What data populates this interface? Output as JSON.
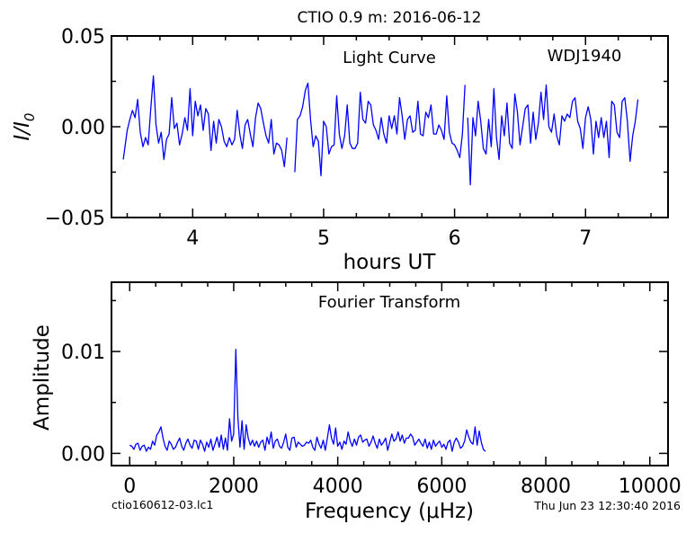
{
  "title": "CTIO 0.9 m:  2016-06-12",
  "footer": {
    "filename": "ctio160612-03.lc1",
    "timestamp": "Thu Jun 23 12:30:40 2016"
  },
  "colors": {
    "series": "#0000ff",
    "axes": "#000000"
  },
  "chart_data": [
    {
      "type": "line",
      "annotations": [
        "Light Curve",
        "WDJ1940"
      ],
      "xlabel": "hours UT",
      "ylabel": "I/I₀",
      "xlim": [
        3.38,
        7.63
      ],
      "ylim": [
        -0.05,
        0.05
      ],
      "xticks": [
        4,
        5,
        6,
        7
      ],
      "xtick_labels": [
        "4",
        "5",
        "6",
        "7"
      ],
      "yticks": [
        -0.05,
        0.0,
        0.05
      ],
      "ytick_labels": [
        "−0.05",
        "0.00",
        "0.05"
      ],
      "segments": [
        {
          "x": [
            3.47,
            3.5,
            3.52,
            3.54,
            3.56,
            3.58,
            3.6,
            3.62,
            3.64,
            3.66,
            3.68,
            3.7,
            3.72,
            3.74,
            3.76,
            3.78,
            3.8,
            3.82,
            3.84,
            3.86,
            3.88,
            3.9,
            3.92,
            3.94,
            3.96,
            3.98,
            4.0,
            4.02,
            4.04,
            4.06,
            4.08,
            4.1,
            4.12,
            4.14,
            4.16,
            4.18,
            4.2,
            4.22,
            4.24,
            4.26,
            4.28,
            4.3,
            4.32,
            4.34,
            4.36,
            4.38,
            4.4,
            4.42,
            4.44,
            4.46,
            4.48,
            4.5,
            4.52,
            4.54,
            4.56,
            4.58,
            4.6,
            4.62,
            4.64,
            4.66,
            4.68,
            4.7,
            4.72
          ],
          "y": [
            -0.018,
            -0.002,
            0.004,
            0.009,
            0.005,
            0.015,
            -0.003,
            -0.011,
            -0.006,
            -0.01,
            0.01,
            0.028,
            0.001,
            -0.009,
            -0.003,
            -0.018,
            -0.007,
            -0.004,
            0.016,
            -0.001,
            0.002,
            -0.01,
            -0.004,
            0.005,
            -0.002,
            0.021,
            -0.005,
            0.014,
            0.006,
            0.012,
            -0.002,
            0.01,
            0.007,
            -0.013,
            0.003,
            -0.009,
            0.004,
            0.0,
            -0.008,
            -0.011,
            -0.006,
            -0.01,
            -0.007,
            0.009,
            -0.004,
            -0.012,
            0.001,
            0.004,
            -0.004,
            -0.011,
            0.005,
            0.013,
            0.01,
            0.002,
            -0.005,
            -0.009,
            0.004,
            -0.015,
            -0.009,
            -0.01,
            -0.013,
            -0.022,
            -0.006
          ]
        },
        {
          "x": [
            4.78,
            4.8,
            4.82,
            4.84,
            4.86,
            4.88,
            4.9,
            4.92,
            4.94,
            4.96,
            4.98,
            5.0,
            5.02,
            5.04,
            5.06,
            5.08,
            5.1,
            5.12,
            5.14,
            5.16,
            5.18,
            5.2,
            5.22,
            5.24,
            5.26,
            5.28,
            5.3,
            5.32,
            5.34,
            5.36,
            5.38,
            5.4,
            5.42,
            5.44,
            5.46,
            5.48,
            5.5,
            5.52,
            5.54,
            5.56,
            5.58,
            5.6,
            5.62,
            5.64,
            5.66,
            5.68,
            5.7,
            5.72,
            5.74,
            5.76,
            5.78,
            5.8,
            5.82,
            5.84,
            5.86,
            5.88,
            5.9,
            5.92,
            5.94,
            5.96,
            5.98,
            6.0,
            6.02,
            6.04,
            6.06,
            6.08
          ],
          "y": [
            -0.025,
            0.004,
            0.006,
            0.011,
            0.02,
            0.024,
            0.004,
            -0.011,
            -0.005,
            -0.008,
            -0.027,
            0.003,
            0.0,
            -0.015,
            -0.011,
            -0.01,
            0.017,
            -0.004,
            -0.012,
            -0.005,
            0.012,
            -0.009,
            -0.012,
            -0.012,
            -0.009,
            0.019,
            0.004,
            0.002,
            0.014,
            0.012,
            0.001,
            -0.002,
            -0.007,
            0.005,
            -0.004,
            -0.009,
            0.006,
            -0.001,
            0.006,
            -0.004,
            0.016,
            0.006,
            -0.007,
            0.004,
            0.006,
            -0.003,
            -0.002,
            0.014,
            -0.004,
            -0.005,
            0.008,
            0.005,
            0.012,
            -0.004,
            -0.004,
            0.001,
            -0.002,
            -0.007,
            0.017,
            -0.003,
            -0.009,
            -0.01,
            -0.013,
            -0.017,
            -0.004,
            0.023
          ]
        },
        {
          "x": [
            6.1,
            6.12,
            6.14,
            6.16,
            6.18,
            6.2,
            6.22,
            6.24,
            6.26,
            6.28,
            6.3,
            6.32,
            6.34,
            6.36,
            6.38,
            6.4,
            6.42,
            6.44,
            6.46,
            6.48,
            6.5,
            6.52,
            6.54,
            6.56,
            6.58,
            6.6,
            6.62,
            6.64,
            6.66,
            6.68,
            6.7,
            6.72,
            6.74,
            6.76,
            6.78,
            6.8,
            6.82,
            6.84,
            6.86,
            6.88,
            6.9,
            6.92,
            6.94,
            6.96,
            6.98,
            7.0,
            7.02,
            7.04,
            7.06,
            7.08,
            7.1,
            7.12,
            7.14,
            7.16,
            7.18,
            7.2,
            7.22,
            7.24,
            7.26,
            7.28,
            7.3,
            7.32,
            7.34,
            7.36,
            7.38,
            7.4
          ],
          "y": [
            0.005,
            -0.032,
            0.005,
            -0.005,
            0.014,
            0.003,
            -0.012,
            -0.015,
            0.004,
            -0.011,
            0.021,
            -0.006,
            -0.018,
            0.006,
            -0.005,
            0.013,
            -0.009,
            -0.012,
            0.018,
            0.008,
            -0.01,
            0.0,
            0.01,
            0.012,
            -0.009,
            0.008,
            -0.007,
            0.002,
            0.019,
            0.004,
            0.023,
            0.0,
            -0.003,
            0.007,
            -0.005,
            -0.01,
            0.006,
            0.003,
            0.007,
            0.005,
            0.014,
            0.016,
            0.003,
            -0.001,
            -0.012,
            0.005,
            0.011,
            0.004,
            -0.015,
            0.003,
            -0.006,
            0.005,
            -0.006,
            0.003,
            -0.017,
            0.014,
            0.012,
            -0.003,
            -0.006,
            0.014,
            0.016,
            0.003,
            -0.019,
            -0.005,
            0.003,
            0.015
          ]
        }
      ]
    },
    {
      "type": "line",
      "annotations": [
        "Fourier Transform"
      ],
      "xlabel": "Frequency (μHz)",
      "ylabel": "Amplitude",
      "xlim": [
        -350,
        10350
      ],
      "ylim": [
        -0.0012,
        0.0168
      ],
      "xticks": [
        0,
        2000,
        4000,
        6000,
        8000,
        10000
      ],
      "xtick_labels": [
        "0",
        "2000",
        "4000",
        "6000",
        "8000",
        "10000"
      ],
      "yticks": [
        0.0,
        0.01
      ],
      "ytick_labels": [
        "0.00",
        "0.01"
      ],
      "segments": [
        {
          "x": [
            0,
            40,
            80,
            120,
            160,
            200,
            240,
            280,
            320,
            360,
            400,
            440,
            480,
            520,
            560,
            600,
            640,
            680,
            720,
            760,
            800,
            840,
            880,
            920,
            960,
            1000,
            1040,
            1080,
            1120,
            1160,
            1200,
            1240,
            1280,
            1320,
            1360,
            1400,
            1440,
            1480,
            1520,
            1560,
            1600,
            1640,
            1680,
            1720,
            1760,
            1800,
            1840,
            1880,
            1920,
            1960,
            2000,
            2040,
            2080,
            2120,
            2160,
            2200,
            2240,
            2280,
            2320,
            2360,
            2400,
            2440,
            2480,
            2520,
            2560,
            2600,
            2640,
            2680,
            2720,
            2760,
            2800,
            2840,
            2880,
            2920,
            2960,
            3000,
            3040,
            3080,
            3120,
            3160,
            3200,
            3240,
            3280,
            3320,
            3360,
            3400,
            3440,
            3480,
            3520,
            3560,
            3600,
            3640,
            3680,
            3720,
            3760,
            3800,
            3840,
            3880,
            3920,
            3960,
            4000,
            4040,
            4080,
            4120,
            4160,
            4200,
            4240,
            4280,
            4320,
            4360,
            4400,
            4440,
            4480,
            4520,
            4560,
            4600,
            4640,
            4680,
            4720,
            4760,
            4800,
            4840,
            4880,
            4920,
            4960,
            5000,
            5040,
            5080,
            5120,
            5160,
            5200,
            5240,
            5280,
            5320,
            5360,
            5400,
            5440,
            5480,
            5520,
            5560,
            5600,
            5640,
            5680,
            5720,
            5760,
            5800,
            5840,
            5880,
            5920,
            5960,
            6000,
            6040,
            6080,
            6120,
            6160,
            6200,
            6240,
            6280,
            6320,
            6360,
            6400,
            6440,
            6480,
            6520,
            6560,
            6600,
            6640,
            6680,
            6720,
            6760,
            6800,
            6840
          ],
          "y": [
            0.0008,
            0.0007,
            0.0004,
            0.0009,
            0.001,
            0.0003,
            0.0007,
            0.0008,
            0.0002,
            0.0006,
            0.0004,
            0.0012,
            0.0008,
            0.0018,
            0.0021,
            0.0026,
            0.0015,
            0.0007,
            0.0003,
            0.0012,
            0.0009,
            0.0004,
            0.0006,
            0.0011,
            0.0015,
            0.0007,
            0.0003,
            0.001,
            0.0014,
            0.0008,
            0.0005,
            0.0013,
            0.0012,
            0.0004,
            0.0013,
            0.0009,
            0.0002,
            0.0011,
            0.0006,
            0.0014,
            0.0003,
            0.0009,
            0.0016,
            0.0006,
            0.0018,
            0.0004,
            0.0015,
            0.0003,
            0.0034,
            0.0012,
            0.0019,
            0.0102,
            0.0035,
            0.0006,
            0.0032,
            0.0004,
            0.0028,
            0.0015,
            0.0008,
            0.0013,
            0.0007,
            0.0012,
            0.0006,
            0.0011,
            0.0013,
            0.0003,
            0.0016,
            0.0009,
            0.0021,
            0.0005,
            0.0012,
            0.0014,
            0.0007,
            0.0005,
            0.0011,
            0.0019,
            0.0006,
            0.0003,
            0.0015,
            0.0016,
            0.0006,
            0.0011,
            0.0009,
            0.0007,
            0.0008,
            0.0011,
            0.001,
            0.0013,
            0.0006,
            0.0003,
            0.0016,
            0.0009,
            0.0005,
            0.0013,
            0.0003,
            0.0015,
            0.0028,
            0.0015,
            0.0009,
            0.0025,
            0.0007,
            0.0011,
            0.0004,
            0.0012,
            0.0009,
            0.0021,
            0.0012,
            0.0007,
            0.0014,
            0.0008,
            0.0016,
            0.0018,
            0.0011,
            0.0013,
            0.0014,
            0.0007,
            0.0011,
            0.0017,
            0.001,
            0.0005,
            0.0014,
            0.0008,
            0.0011,
            0.0015,
            0.0003,
            0.0011,
            0.0019,
            0.0012,
            0.0014,
            0.0021,
            0.0012,
            0.0018,
            0.001,
            0.0015,
            0.0015,
            0.0019,
            0.0016,
            0.0008,
            0.0011,
            0.0014,
            0.001,
            0.0007,
            0.0014,
            0.0005,
            0.0011,
            0.0004,
            0.0013,
            0.0007,
            0.001,
            0.0012,
            0.0006,
            0.0009,
            0.0004,
            0.0011,
            0.0013,
            0.0002,
            0.0011,
            0.0015,
            0.0011,
            0.0005,
            0.0007,
            0.0012,
            0.0023,
            0.0016,
            0.0011,
            0.0009,
            0.0026,
            0.0008,
            0.0022,
            0.0011,
            0.0004,
            0.0002
          ]
        }
      ]
    }
  ]
}
